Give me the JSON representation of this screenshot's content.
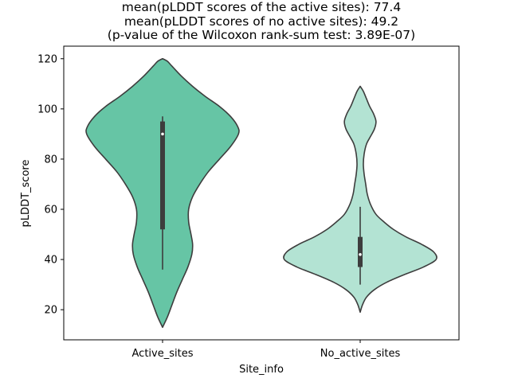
{
  "chart_data": {
    "type": "violin",
    "title_lines": [
      "mean(pLDDT scores of the active sites): 77.4",
      "mean(pLDDT scores of no active sites): 49.2",
      "(p-value of the Wilcoxon rank-sum test: 3.89E-07)"
    ],
    "xlabel": "Site_info",
    "ylabel": "pLDDT_score",
    "ylim": [
      8,
      125
    ],
    "yticks": [
      20,
      40,
      60,
      80,
      100,
      120
    ],
    "grid": false,
    "categories": [
      "Active_sites",
      "No_active_sites"
    ],
    "violins": [
      {
        "category": "Active_sites",
        "color": "#66c5a5",
        "range": [
          13,
          120
        ],
        "median": 90,
        "q1": 52,
        "q3": 95,
        "whisker_low": 36,
        "whisker_high": 97,
        "density": [
          [
            13,
            0.0
          ],
          [
            17,
            0.06
          ],
          [
            22,
            0.12
          ],
          [
            27,
            0.18
          ],
          [
            32,
            0.25
          ],
          [
            37,
            0.32
          ],
          [
            42,
            0.37
          ],
          [
            46,
            0.38
          ],
          [
            50,
            0.36
          ],
          [
            55,
            0.33
          ],
          [
            60,
            0.33
          ],
          [
            65,
            0.38
          ],
          [
            70,
            0.47
          ],
          [
            75,
            0.58
          ],
          [
            80,
            0.72
          ],
          [
            85,
            0.86
          ],
          [
            90,
            0.96
          ],
          [
            93,
            0.95
          ],
          [
            97,
            0.86
          ],
          [
            101,
            0.72
          ],
          [
            105,
            0.54
          ],
          [
            109,
            0.38
          ],
          [
            113,
            0.24
          ],
          [
            117,
            0.12
          ],
          [
            119,
            0.06
          ],
          [
            120,
            0.0
          ]
        ]
      },
      {
        "category": "No_active_sites",
        "color": "#b3e3d3",
        "range": [
          19,
          109
        ],
        "median": 42,
        "q1": 37,
        "q3": 49,
        "whisker_low": 30,
        "whisker_high": 61,
        "density": [
          [
            19,
            0.0
          ],
          [
            22,
            0.03
          ],
          [
            25,
            0.08
          ],
          [
            28,
            0.18
          ],
          [
            31,
            0.34
          ],
          [
            34,
            0.56
          ],
          [
            37,
            0.8
          ],
          [
            40,
            0.96
          ],
          [
            43,
            0.93
          ],
          [
            46,
            0.78
          ],
          [
            49,
            0.58
          ],
          [
            52,
            0.42
          ],
          [
            55,
            0.3
          ],
          [
            58,
            0.2
          ],
          [
            62,
            0.13
          ],
          [
            66,
            0.09
          ],
          [
            70,
            0.07
          ],
          [
            74,
            0.05
          ],
          [
            78,
            0.04
          ],
          [
            82,
            0.05
          ],
          [
            86,
            0.08
          ],
          [
            89,
            0.13
          ],
          [
            92,
            0.18
          ],
          [
            95,
            0.2
          ],
          [
            98,
            0.17
          ],
          [
            101,
            0.12
          ],
          [
            104,
            0.08
          ],
          [
            107,
            0.04
          ],
          [
            109,
            0.0
          ]
        ]
      }
    ]
  }
}
